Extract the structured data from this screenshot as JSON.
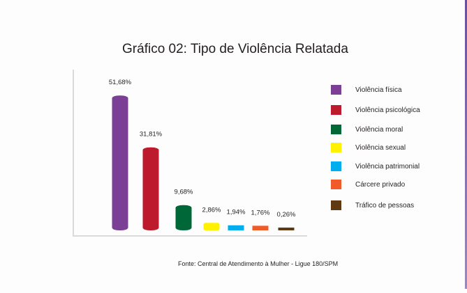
{
  "chart_data": {
    "type": "bar",
    "title": "Gráfico 02: Tipo de Violência Relatada",
    "categories": [
      "Violência física",
      "Violência psicológica",
      "Violência moral",
      "Violência sexual",
      "Violência patrimonial",
      "Cárcere privado",
      "Tráfico de pessoas"
    ],
    "values": [
      51.68,
      31.81,
      9.68,
      2.86,
      1.94,
      1.76,
      0.26
    ],
    "value_labels": [
      "51,68%",
      "31,81%",
      "9,68%",
      "2,86%",
      "1,94%",
      "1,76%",
      "0,26%"
    ],
    "colors": [
      "#7b3f96",
      "#bd1a2d",
      "#006838",
      "#fff200",
      "#00aeef",
      "#f15a29",
      "#603913"
    ],
    "ylim": [
      0,
      55
    ],
    "grid": false,
    "legend_position": "right",
    "source": "Fonte: Central de Atendimento à Mulher - Ligue 180/SPM"
  }
}
